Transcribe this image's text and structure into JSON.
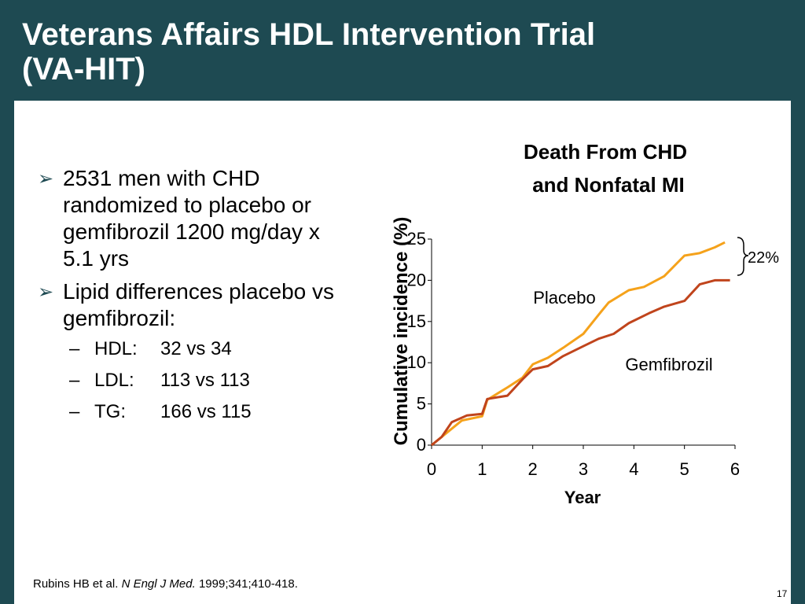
{
  "slide": {
    "title_lines": [
      "Veterans Affairs HDL Intervention Trial",
      "(VA-HIT)"
    ],
    "page_number": "17",
    "citation": {
      "authors": "Rubins HB et al.",
      "journal": "N Engl J Med.",
      "details": "1999;341;410-418."
    },
    "bullets": [
      {
        "text": "2531 men with CHD randomized to placebo or gemfibrozil 1200 mg/day x 5.1 yrs"
      },
      {
        "text": "Lipid differences placebo vs gemfibrozil:"
      }
    ],
    "sub_bullets": [
      {
        "label": "HDL:",
        "value": "32 vs 34"
      },
      {
        "label": "LDL:",
        "value": "113 vs 113"
      },
      {
        "label": "TG:",
        "value": "166 vs 115"
      }
    ]
  },
  "colors": {
    "header": "#1e4a52",
    "placebo": "#f5a21b",
    "gemfibrozil": "#c0441c"
  },
  "chart_data": {
    "type": "line",
    "title": "Death From CHD and Nonfatal MI",
    "title_lines": [
      "Death From CHD",
      "and Nonfatal MI"
    ],
    "xlabel": "Year",
    "ylabel": "Cumulative incidence (%)",
    "xlim": [
      0,
      6
    ],
    "ylim": [
      0,
      25
    ],
    "xticks": [
      "0",
      "1",
      "2",
      "3",
      "4",
      "5",
      "6"
    ],
    "yticks": [
      "0",
      "5",
      "10",
      "15",
      "20",
      "25"
    ],
    "grid": false,
    "annotation": "22%",
    "series": [
      {
        "name": "Placebo",
        "color": "#f5a21b",
        "x": [
          0,
          0.3,
          0.6,
          1.0,
          1.1,
          1.5,
          1.8,
          2.0,
          2.3,
          2.6,
          3.0,
          3.3,
          3.5,
          3.9,
          4.2,
          4.6,
          5.0,
          5.3,
          5.6,
          5.8
        ],
        "y": [
          0,
          1.5,
          3,
          3.5,
          5.5,
          7,
          8.2,
          9.8,
          10.6,
          11.8,
          13.5,
          15.8,
          17.3,
          18.8,
          19.2,
          20.5,
          23,
          23.3,
          24,
          24.6
        ]
      },
      {
        "name": "Gemfibrozil",
        "color": "#c0441c",
        "x": [
          0,
          0.2,
          0.4,
          0.7,
          1.0,
          1.1,
          1.5,
          1.8,
          2.0,
          2.3,
          2.6,
          3.0,
          3.3,
          3.6,
          3.9,
          4.3,
          4.6,
          5.0,
          5.3,
          5.6,
          5.9
        ],
        "y": [
          0,
          1,
          2.8,
          3.6,
          3.8,
          5.6,
          6,
          8,
          9.2,
          9.6,
          10.8,
          12,
          12.9,
          13.5,
          14.8,
          16,
          16.8,
          17.5,
          19.5,
          20,
          20
        ]
      }
    ]
  }
}
